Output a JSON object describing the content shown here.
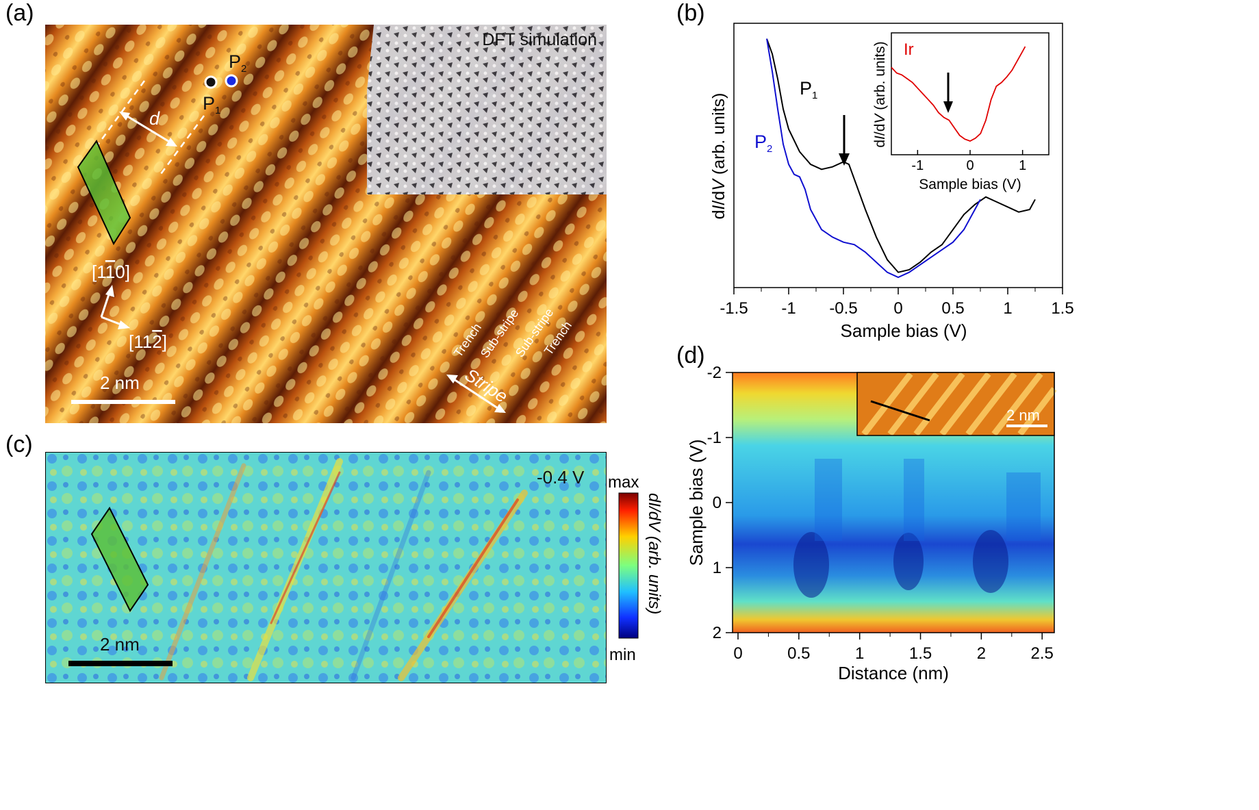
{
  "panel_labels": {
    "a": "(a)",
    "b": "(b)",
    "c": "(c)",
    "d": "(d)"
  },
  "panel_a": {
    "dft_label": "DFT simulation",
    "point1": "P",
    "point1_sub": "1",
    "point2": "P",
    "point2_sub": "2",
    "distance_label": "d",
    "dir1": "[1",
    "dir1_bar": "1",
    "dir1_end": "0]",
    "dir2": "[11",
    "dir2_bar": "2",
    "dir2_end": "]",
    "scalebar": "2 nm",
    "trench_left": "Trench",
    "substripe_left": "Sub-stripe",
    "substripe_right": "Sub-stripe",
    "trench_right": "Trench",
    "stripe": "Stripe",
    "colors": {
      "surface_light": "#ffe07a",
      "surface_mid": "#e58a1c",
      "surface_dark": "#4a1704",
      "dft": "#c9c9cf",
      "cell": "#55b030"
    }
  },
  "panel_c": {
    "voltage": "-0.4 V",
    "scalebar": "2 nm",
    "colorbar_max": "max",
    "colorbar_min": "min",
    "colorbar_label": "dI/dV (arb. units)"
  },
  "panel_d": {
    "inset_scalebar": "2 nm",
    "colors": {
      "low": "#1a3fc0",
      "mid": "#39c6e6",
      "high": "#e8d21a"
    }
  },
  "chart_data": [
    {
      "type": "line",
      "panel": "b",
      "title": "",
      "xlabel": "Sample bias (V)",
      "ylabel": "dI/dV (arb. units)",
      "xlim": [
        -1.5,
        1.5
      ],
      "ylim": [
        0,
        1
      ],
      "x_ticks": [
        "-1.5",
        "-1",
        "-0.5",
        "0",
        "0.5",
        "1",
        "1.5"
      ],
      "series": [
        {
          "name": "P",
          "subscript": "1",
          "color": "#000000",
          "x": [
            -1.2,
            -1.15,
            -1.1,
            -1.05,
            -1.0,
            -0.9,
            -0.8,
            -0.7,
            -0.6,
            -0.5,
            -0.45,
            -0.4,
            -0.3,
            -0.2,
            -0.1,
            0.0,
            0.1,
            0.2,
            0.3,
            0.4,
            0.5,
            0.6,
            0.7,
            0.8,
            0.9,
            1.0,
            1.1,
            1.2,
            1.25
          ],
          "y": [
            0.98,
            0.92,
            0.82,
            0.7,
            0.62,
            0.53,
            0.48,
            0.46,
            0.47,
            0.49,
            0.48,
            0.42,
            0.3,
            0.19,
            0.1,
            0.05,
            0.06,
            0.09,
            0.13,
            0.16,
            0.22,
            0.28,
            0.32,
            0.35,
            0.33,
            0.31,
            0.29,
            0.3,
            0.34
          ]
        },
        {
          "name": "P",
          "subscript": "2",
          "color": "#1010d0",
          "x": [
            -1.2,
            -1.15,
            -1.1,
            -1.05,
            -1.0,
            -0.95,
            -0.9,
            -0.85,
            -0.8,
            -0.7,
            -0.6,
            -0.5,
            -0.4,
            -0.3,
            -0.2,
            -0.1,
            0.0,
            0.1,
            0.2,
            0.3,
            0.4,
            0.5,
            0.6,
            0.7,
            0.75
          ],
          "y": [
            0.98,
            0.85,
            0.7,
            0.56,
            0.48,
            0.44,
            0.43,
            0.38,
            0.3,
            0.22,
            0.19,
            0.17,
            0.16,
            0.13,
            0.09,
            0.05,
            0.03,
            0.05,
            0.08,
            0.11,
            0.14,
            0.17,
            0.22,
            0.3,
            0.34
          ]
        }
      ],
      "annotations": [
        {
          "text": "arrow",
          "x": -0.45
        }
      ]
    },
    {
      "type": "line",
      "panel": "b_inset",
      "xlabel": "Sample bias (V)",
      "ylabel": "dI/dV (arb. units)",
      "xlim": [
        -1.5,
        1.5
      ],
      "x_ticks": [
        "-1",
        "0",
        "1"
      ],
      "legend": "Ir",
      "series": [
        {
          "name": "Ir",
          "color": "#e00000",
          "x": [
            -1.5,
            -1.4,
            -1.3,
            -1.2,
            -1.1,
            -1.0,
            -0.9,
            -0.8,
            -0.7,
            -0.6,
            -0.5,
            -0.4,
            -0.3,
            -0.2,
            -0.1,
            0.0,
            0.1,
            0.2,
            0.3,
            0.4,
            0.5,
            0.6,
            0.7,
            0.8,
            0.9,
            1.0,
            1.05
          ],
          "y": [
            0.78,
            0.72,
            0.7,
            0.66,
            0.62,
            0.56,
            0.5,
            0.44,
            0.38,
            0.3,
            0.25,
            0.22,
            0.14,
            0.06,
            0.02,
            0.0,
            0.03,
            0.08,
            0.22,
            0.44,
            0.58,
            0.62,
            0.68,
            0.75,
            0.85,
            0.95,
            1.0
          ]
        }
      ],
      "annotations": [
        {
          "text": "arrow",
          "x": -0.5
        }
      ]
    },
    {
      "type": "heatmap",
      "panel": "d",
      "xlabel": "Distance (nm)",
      "ylabel": "Sample bias (V)",
      "xlim": [
        0,
        2.6
      ],
      "ylim": [
        -2,
        2
      ],
      "x_ticks": [
        "0",
        "0.5",
        "1",
        "1.5",
        "2",
        "2.5"
      ],
      "y_ticks": [
        "-2",
        "-1",
        "0",
        "1",
        "2"
      ],
      "low_band": {
        "bias_range": [
          0.4,
          1.4
        ],
        "minima_distance_nm": [
          0.6,
          1.45,
          2.2
        ]
      }
    }
  ]
}
